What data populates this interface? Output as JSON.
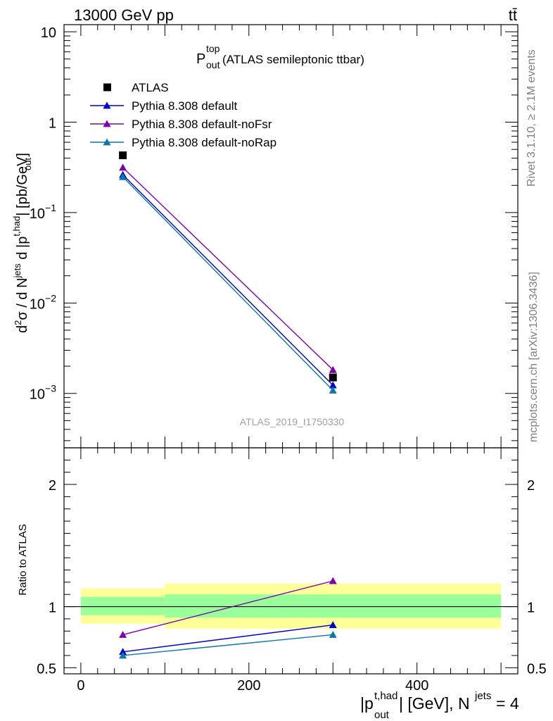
{
  "header": {
    "energy": "13000 GeV pp",
    "process": "tt̄"
  },
  "side_labels": {
    "rivet": "Rivet 3.1.10, ≥ 2.1M events",
    "mcplots": "mcplots.cern.ch [arXiv:1306.3436]"
  },
  "watermark": "ATLAS_2019_I1750330",
  "colors": {
    "ATLAS": "#000000",
    "Pythia 8.308 default": "#0000cc",
    "Pythia 8.308 default-noFsr": "#7a00b0",
    "Pythia 8.308 default-noRap": "#0a78a8",
    "band_inner": "#99ff99",
    "band_outer": "#ffff99"
  },
  "chart_data": [
    {
      "type": "line",
      "title": {
        "main": "P",
        "sup": "top",
        "sub": "out",
        "rest": " (ATLAS semileptonic ttbar)"
      },
      "ylabel": "d²σ / d N^jets d |p_out^t,had| [pb/GeV]",
      "yscale": "log",
      "ylim": [
        0.00025,
        12
      ],
      "xlim": [
        -20,
        520
      ],
      "ytick_labels": [
        {
          "base": "10",
          "exp": ""
        },
        {
          "base": "1",
          "exp": ""
        },
        {
          "base": "10",
          "exp": "−1"
        },
        {
          "base": "10",
          "exp": "−2"
        },
        {
          "base": "10",
          "exp": "−3"
        }
      ],
      "legend_position": "top-left",
      "x": [
        50,
        300
      ],
      "series": [
        {
          "name": "ATLAS",
          "marker": "square",
          "values": [
            0.43,
            0.0015
          ]
        },
        {
          "name": "Pythia 8.308 default",
          "marker": "triangle",
          "values": [
            0.262,
            0.00123
          ]
        },
        {
          "name": "Pythia 8.308 default-noFsr",
          "marker": "triangle",
          "values": [
            0.315,
            0.00182
          ]
        },
        {
          "name": "Pythia 8.308 default-noRap",
          "marker": "triangle",
          "values": [
            0.248,
            0.00108
          ]
        }
      ]
    },
    {
      "type": "line",
      "ylabel": "Ratio to ATLAS",
      "xlabel": {
        "p": "|p",
        "sup": "t,had",
        "sub": "out",
        "rest": "| [GeV], N",
        "sup2": "jets",
        "tail": " = 4"
      },
      "ylim": [
        0.45,
        2.3
      ],
      "xlim": [
        -20,
        520
      ],
      "xtick_labels": [
        "0",
        "200",
        "400"
      ],
      "ytick_labels": [
        "2",
        "1",
        "0.5"
      ],
      "x": [
        50,
        300
      ],
      "bands": [
        {
          "xmin": 0,
          "xmax": 100,
          "inner": [
            0.93,
            1.08
          ],
          "outer": [
            0.86,
            1.15
          ]
        },
        {
          "xmin": 100,
          "xmax": 500,
          "inner": [
            0.91,
            1.1
          ],
          "outer": [
            0.82,
            1.19
          ]
        }
      ],
      "series": [
        {
          "name": "Pythia 8.308 default",
          "values": [
            0.63,
            0.85
          ]
        },
        {
          "name": "Pythia 8.308 default-noFsr",
          "values": [
            0.77,
            1.21
          ]
        },
        {
          "name": "Pythia 8.308 default-noRap",
          "values": [
            0.6,
            0.77
          ]
        }
      ]
    }
  ]
}
